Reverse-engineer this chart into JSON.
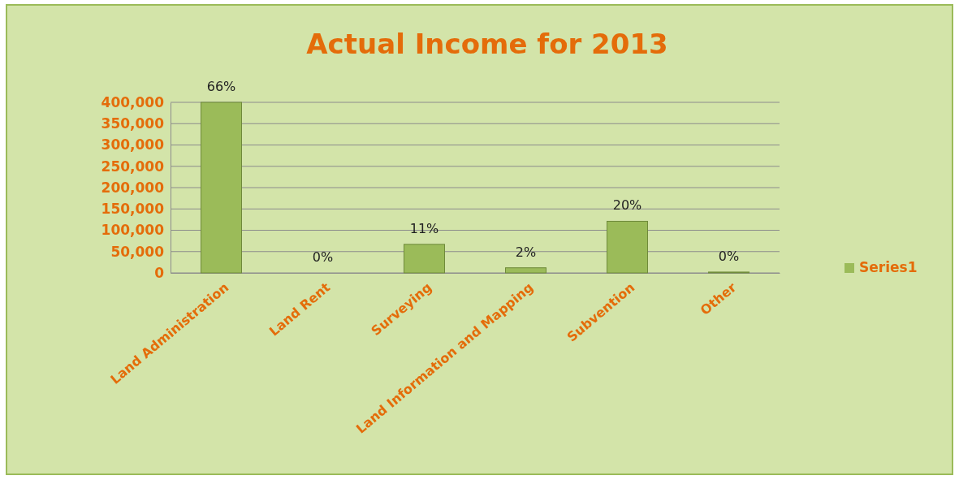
{
  "chart_data": {
    "type": "bar",
    "title": "Actual Income for 2013",
    "categories": [
      "Land Administration",
      "Land Rent",
      "Surveying",
      "Land Information and Mapping",
      "Subvention",
      "Other"
    ],
    "series": [
      {
        "name": "Series1",
        "color": "#9bbb59",
        "values": [
          400000,
          0,
          67000,
          12000,
          121000,
          2000
        ]
      }
    ],
    "annotations": [
      {
        "text": "66%",
        "x": "Land Administration",
        "y": 400000
      },
      {
        "text": "0%",
        "x": "Land Rent",
        "y": 0
      },
      {
        "text": "11%",
        "x": "Surveying",
        "y": 67000
      },
      {
        "text": "2%",
        "x": "Land Information and Mapping",
        "y": 12000
      },
      {
        "text": "20%",
        "x": "Subvention",
        "y": 121000
      },
      {
        "text": "0%",
        "x": "Other",
        "y": 2000
      }
    ],
    "ylim": [
      0,
      400000
    ],
    "yticks": [
      {
        "value": 0,
        "label": "0"
      },
      {
        "value": 50000,
        "label": "50,000"
      },
      {
        "value": 100000,
        "label": "100,000"
      },
      {
        "value": 150000,
        "label": "150,000"
      },
      {
        "value": 200000,
        "label": "200,000"
      },
      {
        "value": 250000,
        "label": "250,000"
      },
      {
        "value": 300000,
        "label": "300,000"
      },
      {
        "value": 350000,
        "label": "350,000"
      },
      {
        "value": 400000,
        "label": "400,000"
      }
    ],
    "grid": true,
    "legend": "right"
  }
}
